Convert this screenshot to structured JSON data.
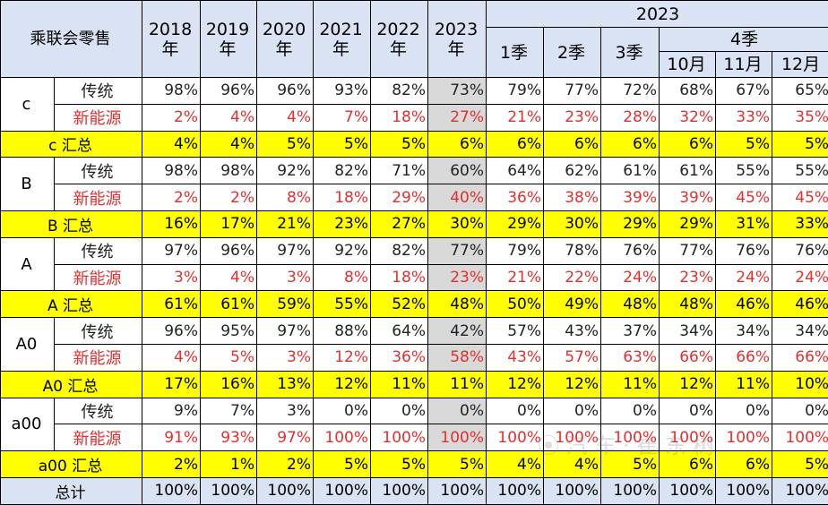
{
  "header": {
    "title": "乘联会零售",
    "years": [
      "2018\n年",
      "2019\n年",
      "2020\n年",
      "2021\n年",
      "2022\n年",
      "2023\n年"
    ],
    "group_2023": "2023",
    "quarters": [
      "1季",
      "2季",
      "3季"
    ],
    "q4": "4季",
    "months": [
      "10月",
      "11月",
      "12月"
    ]
  },
  "labels": {
    "trad": "传统",
    "nev": "新能源",
    "total": "总计"
  },
  "segments": [
    {
      "name": "c",
      "sum_label": "c 汇总",
      "trad": [
        "98%",
        "96%",
        "96%",
        "93%",
        "82%",
        "73%",
        "79%",
        "77%",
        "72%",
        "68%",
        "67%",
        "65%"
      ],
      "nev": [
        "2%",
        "4%",
        "4%",
        "7%",
        "18%",
        "27%",
        "21%",
        "23%",
        "28%",
        "32%",
        "33%",
        "35%"
      ],
      "sum": [
        "4%",
        "4%",
        "5%",
        "5%",
        "5%",
        "6%",
        "6%",
        "6%",
        "6%",
        "6%",
        "5%",
        "5%"
      ]
    },
    {
      "name": "B",
      "sum_label": "B 汇总",
      "trad": [
        "98%",
        "98%",
        "92%",
        "82%",
        "71%",
        "60%",
        "64%",
        "62%",
        "61%",
        "61%",
        "55%",
        "55%"
      ],
      "nev": [
        "2%",
        "2%",
        "8%",
        "18%",
        "29%",
        "40%",
        "36%",
        "38%",
        "39%",
        "39%",
        "45%",
        "45%"
      ],
      "sum": [
        "16%",
        "17%",
        "21%",
        "23%",
        "27%",
        "30%",
        "29%",
        "30%",
        "29%",
        "29%",
        "31%",
        "33%"
      ]
    },
    {
      "name": "A",
      "sum_label": "A 汇总",
      "trad": [
        "97%",
        "96%",
        "97%",
        "92%",
        "82%",
        "77%",
        "79%",
        "78%",
        "76%",
        "77%",
        "76%",
        "76%"
      ],
      "nev": [
        "3%",
        "4%",
        "3%",
        "8%",
        "18%",
        "23%",
        "21%",
        "22%",
        "24%",
        "23%",
        "24%",
        "24%"
      ],
      "sum": [
        "61%",
        "61%",
        "59%",
        "55%",
        "52%",
        "48%",
        "50%",
        "49%",
        "48%",
        "48%",
        "46%",
        "46%"
      ]
    },
    {
      "name": "A0",
      "sum_label": "A0 汇总",
      "trad": [
        "96%",
        "95%",
        "97%",
        "88%",
        "64%",
        "42%",
        "57%",
        "43%",
        "37%",
        "34%",
        "34%",
        "34%"
      ],
      "nev": [
        "4%",
        "5%",
        "3%",
        "12%",
        "36%",
        "58%",
        "43%",
        "57%",
        "63%",
        "66%",
        "66%",
        "66%"
      ],
      "sum": [
        "17%",
        "16%",
        "13%",
        "12%",
        "11%",
        "11%",
        "12%",
        "12%",
        "11%",
        "12%",
        "11%",
        "10%"
      ]
    },
    {
      "name": "a00",
      "sum_label": "a00 汇总",
      "trad": [
        "9%",
        "7%",
        "3%",
        "0%",
        "0%",
        "0%",
        "0%",
        "0%",
        "0%",
        "0%",
        "0%",
        "0%"
      ],
      "nev": [
        "91%",
        "93%",
        "97%",
        "100%",
        "100%",
        "100%",
        "100%",
        "100%",
        "100%",
        "100%",
        "100%",
        "100%"
      ],
      "sum": [
        "2%",
        "1%",
        "2%",
        "5%",
        "5%",
        "5%",
        "4%",
        "4%",
        "5%",
        "6%",
        "6%",
        "5%"
      ]
    }
  ],
  "total": [
    "100%",
    "100%",
    "100%",
    "100%",
    "100%",
    "100%",
    "100%",
    "100%",
    "100%",
    "100%",
    "100%",
    "100%"
  ],
  "colors": {
    "header_bg": "#dae3f3",
    "summary_bg": "#ffff00",
    "nev_text": "#e03030",
    "year2023_bg": "#d9d9d9"
  }
}
